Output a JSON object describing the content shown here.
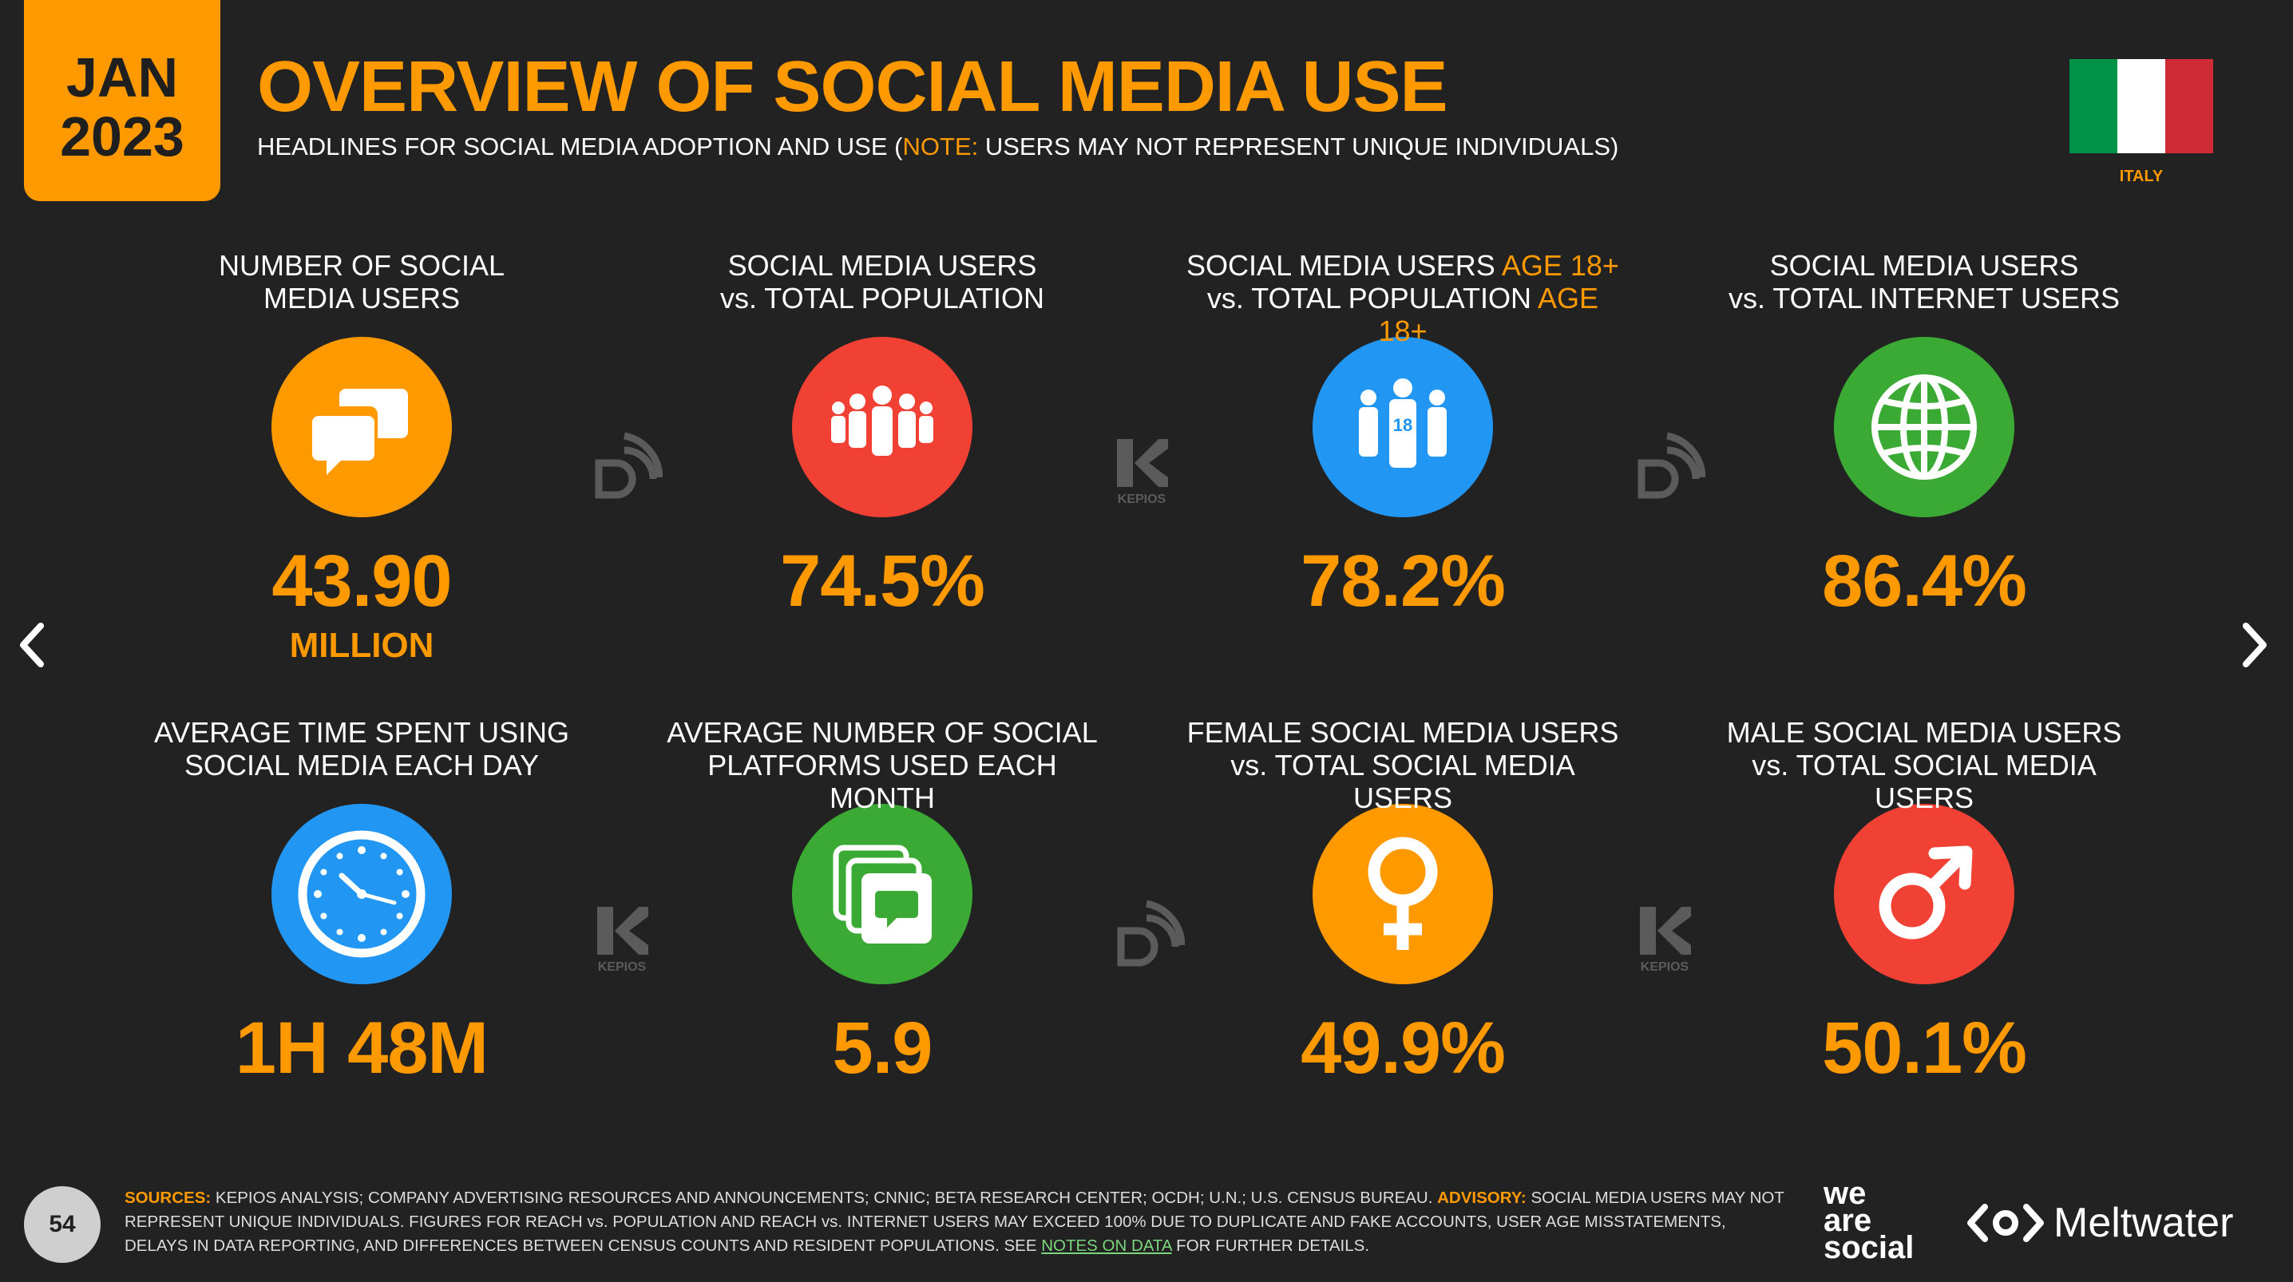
{
  "header": {
    "date_month": "JAN",
    "date_year": "2023",
    "title": "OVERVIEW OF SOCIAL MEDIA USE",
    "subtitle_pre": "HEADLINES FOR SOCIAL MEDIA ADOPTION AND USE (",
    "subtitle_note": "NOTE:",
    "subtitle_post": " USERS MAY NOT REPRESENT UNIQUE INDIVIDUALS)"
  },
  "flag": {
    "country": "ITALY",
    "colors": [
      "#009246",
      "#ffffff",
      "#ce2b37"
    ]
  },
  "stats": {
    "num_users": {
      "label_1": "NUMBER OF SOCIAL",
      "label_2": "MEDIA USERS",
      "value": "43.90",
      "unit": "MILLION",
      "icon": "chat-bubbles-icon",
      "color": "#ff9900"
    },
    "users_vs_pop": {
      "label_1": "SOCIAL MEDIA USERS",
      "label_2": "vs. TOTAL POPULATION",
      "value": "74.5%",
      "icon": "crowd-icon",
      "color": "#f04134"
    },
    "users_vs_pop_18": {
      "label_1a": "SOCIAL MEDIA USERS ",
      "label_1b": "AGE 18+",
      "label_2a": "vs. TOTAL POPULATION ",
      "label_2b": "AGE 18+",
      "value": "78.2%",
      "icon": "adults-18-icon",
      "icon_text": "18",
      "color": "#2196f3"
    },
    "users_vs_internet": {
      "label_1": "SOCIAL MEDIA USERS",
      "label_2": "vs. TOTAL INTERNET USERS",
      "value": "86.4%",
      "icon": "globe-icon",
      "color": "#3aaa35"
    },
    "avg_time": {
      "label_1": "AVERAGE TIME SPENT USING",
      "label_2": "SOCIAL MEDIA EACH DAY",
      "value": "1H 48M",
      "icon": "clock-icon",
      "color": "#2196f3"
    },
    "avg_platforms": {
      "label_1": "AVERAGE NUMBER OF SOCIAL",
      "label_2": "PLATFORMS USED EACH MONTH",
      "value": "5.9",
      "icon": "stacked-apps-icon",
      "color": "#3aaa35"
    },
    "female": {
      "label_1": "FEMALE SOCIAL MEDIA USERS",
      "label_2": "vs. TOTAL SOCIAL MEDIA USERS",
      "value": "49.9%",
      "icon": "female-symbol-icon",
      "color": "#ff9900"
    },
    "male": {
      "label_1": "MALE SOCIAL MEDIA USERS",
      "label_2": "vs. TOTAL SOCIAL MEDIA USERS",
      "value": "50.1%",
      "icon": "male-symbol-icon",
      "color": "#f04134"
    }
  },
  "watermarks": {
    "kepios_text": "KEPIOS"
  },
  "footer": {
    "page_number": "54",
    "sources_label": "SOURCES:",
    "sources_text": " KEPIOS ANALYSIS; COMPANY ADVERTISING RESOURCES AND ANNOUNCEMENTS; CNNIC; BETA RESEARCH CENTER; OCDH; U.N.; U.S. CENSUS BUREAU. ",
    "advisory_label": "ADVISORY:",
    "advisory_text": " SOCIAL MEDIA USERS MAY NOT REPRESENT UNIQUE INDIVIDUALS. FIGURES FOR REACH vs. POPULATION AND REACH vs. INTERNET USERS MAY EXCEED 100% DUE TO DUPLICATE AND FAKE ACCOUNTS, USER AGE MISSTATEMENTS, DELAYS IN DATA REPORTING, AND DIFFERENCES BETWEEN CENSUS COUNTS AND RESIDENT POPULATIONS. SEE ",
    "notes_link": "NOTES ON DATA",
    "tail_text": " FOR FURTHER DETAILS.",
    "was_line1": "we",
    "was_line2": "are",
    "was_line3": "social",
    "meltwater": "Meltwater"
  }
}
